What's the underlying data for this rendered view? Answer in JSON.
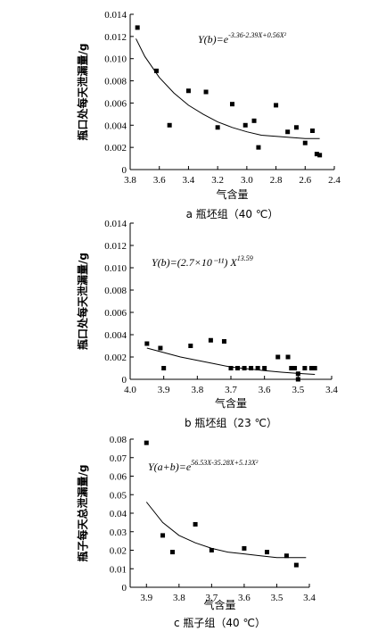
{
  "chart_data": [
    {
      "type": "scatter",
      "xlabel": "气含量",
      "ylabel": "瓶口处每天泄漏量/g",
      "caption": "a  瓶坯组（40 ℃）",
      "equation": {
        "lhs": "Y(b)=e",
        "sup": "-3.36-2.39X+0.56X²"
      },
      "xlim": [
        3.8,
        2.4
      ],
      "ylim": [
        0,
        0.014
      ],
      "xticks": [
        "3.8",
        "3.6",
        "3.4",
        "3.2",
        "3.0",
        "2.8",
        "2.6",
        "2.4"
      ],
      "yticks": [
        "0",
        "0.002",
        "0.004",
        "0.006",
        "0.008",
        "0.010",
        "0.012",
        "0.014"
      ],
      "points": [
        [
          3.75,
          0.0128
        ],
        [
          3.62,
          0.0089
        ],
        [
          3.53,
          0.004
        ],
        [
          3.4,
          0.0071
        ],
        [
          3.28,
          0.007
        ],
        [
          3.2,
          0.0038
        ],
        [
          3.1,
          0.0059
        ],
        [
          3.01,
          0.004
        ],
        [
          2.95,
          0.0044
        ],
        [
          2.92,
          0.002
        ],
        [
          2.8,
          0.0058
        ],
        [
          2.72,
          0.0034
        ],
        [
          2.66,
          0.0038
        ],
        [
          2.6,
          0.0024
        ],
        [
          2.55,
          0.0035
        ],
        [
          2.52,
          0.0014
        ],
        [
          2.5,
          0.0013
        ]
      ],
      "trend": [
        [
          3.76,
          0.0118
        ],
        [
          3.7,
          0.0102
        ],
        [
          3.6,
          0.0083
        ],
        [
          3.5,
          0.0069
        ],
        [
          3.4,
          0.0058
        ],
        [
          3.3,
          0.005
        ],
        [
          3.2,
          0.0043
        ],
        [
          3.1,
          0.0038
        ],
        [
          3.0,
          0.0034
        ],
        [
          2.9,
          0.0031
        ],
        [
          2.8,
          0.003
        ],
        [
          2.7,
          0.0029
        ],
        [
          2.6,
          0.0028
        ],
        [
          2.5,
          0.0028
        ]
      ]
    },
    {
      "type": "scatter",
      "xlabel": "气含量",
      "ylabel": "瓶口处每天泄漏量/g",
      "caption": "b  瓶坯组（23 ℃）",
      "equation": {
        "lhs": "Y(b)=(2.7×10⁻¹¹) X",
        "sup": "13.59"
      },
      "xlim": [
        4.0,
        3.4
      ],
      "ylim": [
        0,
        0.014
      ],
      "xticks": [
        "4.0",
        "3.9",
        "3.8",
        "3.7",
        "3.6",
        "3.5",
        "3.4"
      ],
      "yticks": [
        "0",
        "0.002",
        "0.004",
        "0.006",
        "0.008",
        "0.010",
        "0.012",
        "0.014"
      ],
      "points": [
        [
          3.95,
          0.0032
        ],
        [
          3.91,
          0.0028
        ],
        [
          3.9,
          0.001
        ],
        [
          3.82,
          0.003
        ],
        [
          3.76,
          0.0035
        ],
        [
          3.72,
          0.0034
        ],
        [
          3.7,
          0.001
        ],
        [
          3.68,
          0.001
        ],
        [
          3.66,
          0.001
        ],
        [
          3.64,
          0.001
        ],
        [
          3.62,
          0.001
        ],
        [
          3.6,
          0.001
        ],
        [
          3.56,
          0.002
        ],
        [
          3.53,
          0.002
        ],
        [
          3.52,
          0.001
        ],
        [
          3.51,
          0.001
        ],
        [
          3.5,
          0.0005
        ],
        [
          3.5,
          0.0
        ],
        [
          3.48,
          0.001
        ],
        [
          3.46,
          0.001
        ],
        [
          3.45,
          0.001
        ]
      ],
      "trend": [
        [
          3.95,
          0.0028
        ],
        [
          3.9,
          0.0024
        ],
        [
          3.85,
          0.002
        ],
        [
          3.8,
          0.0017
        ],
        [
          3.75,
          0.0014
        ],
        [
          3.7,
          0.0011
        ],
        [
          3.65,
          0.00094
        ],
        [
          3.6,
          0.00078
        ],
        [
          3.55,
          0.00064
        ],
        [
          3.5,
          0.00053
        ],
        [
          3.45,
          0.00044
        ]
      ]
    },
    {
      "type": "scatter",
      "xlabel": "气含量",
      "ylabel": "瓶子每天总泄漏量/g",
      "caption": "c  瓶子组（40 ℃）",
      "equation": {
        "lhs": "Y(a+b)=e",
        "sup": "56.53X-35.28X+5.13X²"
      },
      "xlim": [
        3.95,
        3.4
      ],
      "ylim": [
        0,
        0.08
      ],
      "xticks": [
        "3.9",
        "3.8",
        "3.7",
        "3.6",
        "3.5",
        "3.4"
      ],
      "xtickvals": [
        3.9,
        3.8,
        3.7,
        3.6,
        3.5,
        3.4
      ],
      "yticks": [
        "0",
        "0.01",
        "0.02",
        "0.03",
        "0.04",
        "0.05",
        "0.06",
        "0.07",
        "0.08"
      ],
      "points": [
        [
          3.9,
          0.078
        ],
        [
          3.85,
          0.028
        ],
        [
          3.82,
          0.019
        ],
        [
          3.75,
          0.034
        ],
        [
          3.7,
          0.02
        ],
        [
          3.6,
          0.021
        ],
        [
          3.53,
          0.019
        ],
        [
          3.47,
          0.017
        ],
        [
          3.44,
          0.012
        ]
      ],
      "trend": [
        [
          3.9,
          0.046
        ],
        [
          3.85,
          0.035
        ],
        [
          3.8,
          0.028
        ],
        [
          3.75,
          0.024
        ],
        [
          3.7,
          0.021
        ],
        [
          3.65,
          0.019
        ],
        [
          3.6,
          0.018
        ],
        [
          3.55,
          0.017
        ],
        [
          3.5,
          0.016
        ],
        [
          3.45,
          0.016
        ],
        [
          3.41,
          0.016
        ]
      ]
    }
  ]
}
